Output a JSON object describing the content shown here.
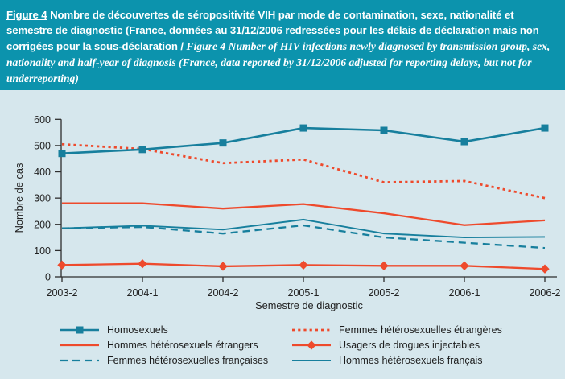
{
  "header": {
    "figure_label_fr": "Figure 4",
    "title_fr": "Nombre de découvertes de séropositivité VIH par mode de contamination, sexe, nationalité et semestre de diagnostic (France, données au 31/12/2006 redressées pour les délais de déclaration mais non corrigées pour la sous-déclaration /",
    "figure_label_en": "Figure 4",
    "title_en": "Number of HIV infections newly diagnosed by transmission group, sex, nationality and half-year of diagnosis (France, data reported by 31/12/2006 adjusted for reporting delays, but not for underreporting)"
  },
  "colors": {
    "header_bg": "#0c93ad",
    "panel_bg": "#d6e7ed",
    "teal": "#177f9d",
    "red": "#ee4a2c",
    "axis": "#2e2e2e"
  },
  "chart_data": {
    "type": "line",
    "title": "",
    "xlabel": "Semestre de diagnostic",
    "ylabel": "Nombre de cas",
    "ylim": [
      0,
      600
    ],
    "yticks": [
      0,
      100,
      200,
      300,
      400,
      500,
      600
    ],
    "grid": false,
    "legend_position": "bottom",
    "categories": [
      "2003-2",
      "2004-1",
      "2004-2",
      "2005-1",
      "2005-2",
      "2006-1",
      "2006-2"
    ],
    "series": [
      {
        "id": "homosexuels",
        "name": "Homosexuels",
        "color": "#177f9d",
        "dash": "",
        "marker": "square",
        "width": 2.6,
        "values": [
          470,
          485,
          510,
          567,
          558,
          515,
          567
        ]
      },
      {
        "id": "hommes-heterosexuels-etrangers",
        "name": "Hommes hétérosexuels étrangers",
        "color": "#ee4a2c",
        "dash": "",
        "marker": "",
        "width": 2.3,
        "values": [
          280,
          280,
          260,
          277,
          242,
          197,
          215
        ]
      },
      {
        "id": "femmes-heterosexuelles-francaises",
        "name": "Femmes hétérosexuelles françaises",
        "color": "#177f9d",
        "dash": "9,6",
        "marker": "",
        "width": 2.3,
        "values": [
          185,
          190,
          165,
          196,
          150,
          130,
          110
        ]
      },
      {
        "id": "femmes-heterosexuelles-etrangeres",
        "name": "Femmes hétérosexuelles étrangères",
        "color": "#ee4a2c",
        "dash": "3.2,4",
        "marker": "",
        "width": 2.8,
        "values": [
          505,
          487,
          433,
          447,
          360,
          365,
          300
        ]
      },
      {
        "id": "usagers-drogues-injectables",
        "name": "Usagers de drogues injectables",
        "color": "#ee4a2c",
        "dash": "",
        "marker": "diamond",
        "width": 2.3,
        "values": [
          45,
          50,
          40,
          45,
          42,
          42,
          30
        ]
      },
      {
        "id": "hommes-heterosexuels-francais",
        "name": "Hommes hétérosexuels français",
        "color": "#177f9d",
        "dash": "",
        "marker": "",
        "width": 1.9,
        "values": [
          185,
          195,
          180,
          218,
          165,
          150,
          152
        ]
      }
    ],
    "legend_columns": [
      [
        0,
        1,
        2
      ],
      [
        3,
        4,
        5
      ]
    ]
  }
}
